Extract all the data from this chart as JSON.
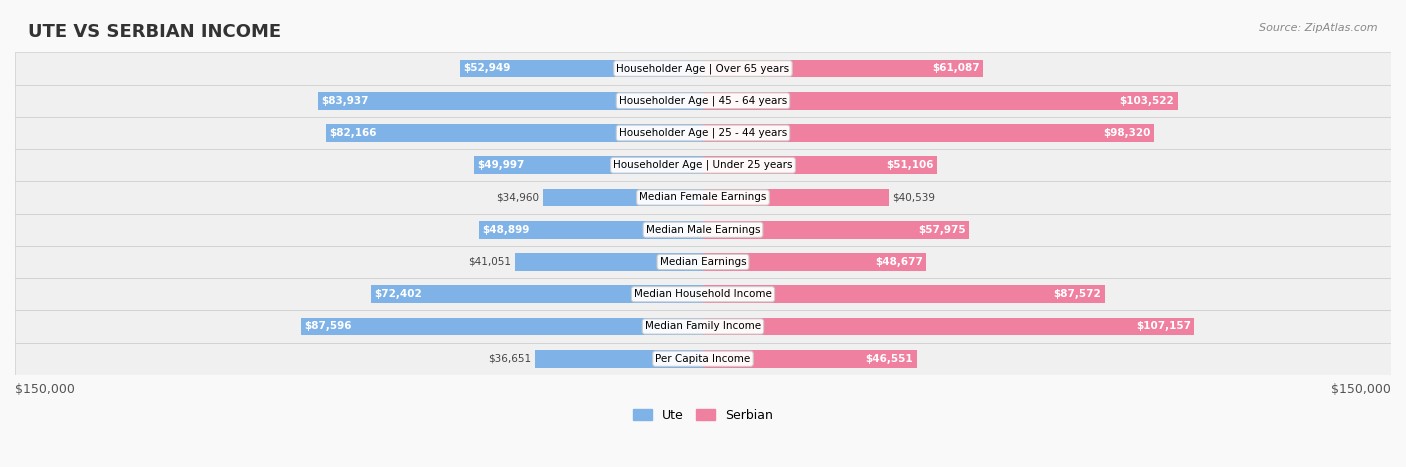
{
  "title": "UTE VS SERBIAN INCOME",
  "source": "Source: ZipAtlas.com",
  "categories": [
    "Per Capita Income",
    "Median Family Income",
    "Median Household Income",
    "Median Earnings",
    "Median Male Earnings",
    "Median Female Earnings",
    "Householder Age | Under 25 years",
    "Householder Age | 25 - 44 years",
    "Householder Age | 45 - 64 years",
    "Householder Age | Over 65 years"
  ],
  "ute_values": [
    36651,
    87596,
    72402,
    41051,
    48899,
    34960,
    49997,
    82166,
    83937,
    52949
  ],
  "serbian_values": [
    46551,
    107157,
    87572,
    48677,
    57975,
    40539,
    51106,
    98320,
    103522,
    61087
  ],
  "ute_labels": [
    "$36,651",
    "$87,596",
    "$72,402",
    "$41,051",
    "$48,899",
    "$34,960",
    "$49,997",
    "$82,166",
    "$83,937",
    "$52,949"
  ],
  "serbian_labels": [
    "$46,551",
    "$107,157",
    "$87,572",
    "$48,677",
    "$57,975",
    "$40,539",
    "$51,106",
    "$98,320",
    "$103,522",
    "$61,087"
  ],
  "ute_color": "#7fb3e8",
  "serbian_color": "#f080a0",
  "ute_color_dark": "#5a9fd4",
  "serbian_color_dark": "#e85c85",
  "max_value": 150000,
  "bar_height": 0.55,
  "background_color": "#f0f0f0",
  "row_bg_color": "#e8e8e8",
  "row_bg_light": "#f5f5f5",
  "xlabel_left": "$150,000",
  "xlabel_right": "$150,000",
  "legend_ute": "Ute",
  "legend_serbian": "Serbian"
}
